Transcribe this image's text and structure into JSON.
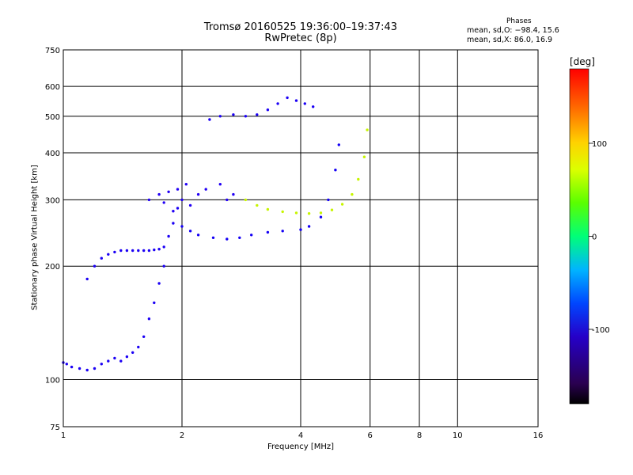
{
  "chart_data": {
    "type": "scatter",
    "title": "Tromsø 20160525 19:36:00–19:37:43",
    "subtitle": "RwPretec (8p)",
    "xlabel": "Frequency [MHz]",
    "ylabel": "Stationary phase Virtual Height [km]",
    "x_scale": "log",
    "y_scale": "log",
    "xlim": [
      1,
      16
    ],
    "ylim": [
      75,
      750
    ],
    "x_ticks": [
      1,
      2,
      4,
      6,
      8,
      10,
      16
    ],
    "y_ticks": [
      75,
      100,
      200,
      300,
      400,
      500,
      600,
      750
    ],
    "grid": true,
    "phase_stats": {
      "header": "Phases",
      "o_line": "mean, sd,O: −98.4, 15.6",
      "x_line": "mean, sd,X:  86.0, 16.9"
    },
    "colorbar": {
      "label": "[deg]",
      "range": [
        -180,
        180
      ],
      "ticks": [
        -100,
        0,
        100
      ]
    },
    "series": [
      {
        "trace": "low-layer-lower-branch",
        "phase": -110,
        "x": [
          1.0,
          1.02,
          1.05,
          1.1,
          1.15,
          1.2,
          1.25,
          1.3,
          1.35,
          1.4,
          1.45,
          1.5,
          1.55,
          1.6,
          1.65,
          1.7,
          1.75,
          1.8
        ],
        "y": [
          111,
          110,
          108,
          107,
          106,
          107,
          110,
          112,
          114,
          112,
          115,
          118,
          122,
          130,
          145,
          160,
          180,
          200
        ]
      },
      {
        "trace": "low-layer-upper-branch",
        "phase": -110,
        "x": [
          1.15,
          1.2,
          1.25,
          1.3,
          1.35,
          1.4,
          1.45,
          1.5,
          1.55,
          1.6,
          1.65,
          1.7,
          1.75,
          1.8,
          1.85,
          1.9,
          1.95
        ],
        "y": [
          185,
          200,
          210,
          215,
          218,
          220,
          220,
          220,
          220,
          220,
          220,
          221,
          222,
          225,
          240,
          260,
          285
        ]
      },
      {
        "trace": "mid-band-scatter",
        "phase": -115,
        "x": [
          1.65,
          1.75,
          1.8,
          1.85,
          1.9,
          1.95,
          2.0,
          2.05,
          2.1,
          2.2,
          2.3,
          2.5,
          2.6,
          2.7
        ],
        "y": [
          300,
          310,
          295,
          315,
          280,
          320,
          300,
          330,
          290,
          310,
          320,
          330,
          300,
          310
        ]
      },
      {
        "trace": "o-mode-trace",
        "phase": -105,
        "x": [
          2.0,
          2.1,
          2.2,
          2.4,
          2.6,
          2.8,
          3.0,
          3.3,
          3.6,
          4.0,
          4.2,
          4.5,
          4.7,
          4.9,
          5.0
        ],
        "y": [
          255,
          248,
          242,
          238,
          236,
          238,
          242,
          246,
          248,
          250,
          255,
          270,
          300,
          360,
          420
        ]
      },
      {
        "trace": "x-mode-trace",
        "phase": 100,
        "x": [
          2.9,
          3.1,
          3.3,
          3.6,
          3.9,
          4.2,
          4.5,
          4.8,
          5.1,
          5.4,
          5.6,
          5.8,
          5.9
        ],
        "y": [
          300,
          290,
          283,
          279,
          277,
          276,
          277,
          282,
          292,
          310,
          340,
          390,
          460
        ]
      },
      {
        "trace": "upper-echo-group",
        "phase": -110,
        "x": [
          2.35,
          2.5,
          2.7,
          2.9,
          3.1,
          3.3,
          3.5,
          3.7,
          3.9,
          4.1,
          4.3
        ],
        "y": [
          490,
          500,
          505,
          500,
          505,
          520,
          540,
          560,
          550,
          540,
          530
        ]
      }
    ]
  }
}
